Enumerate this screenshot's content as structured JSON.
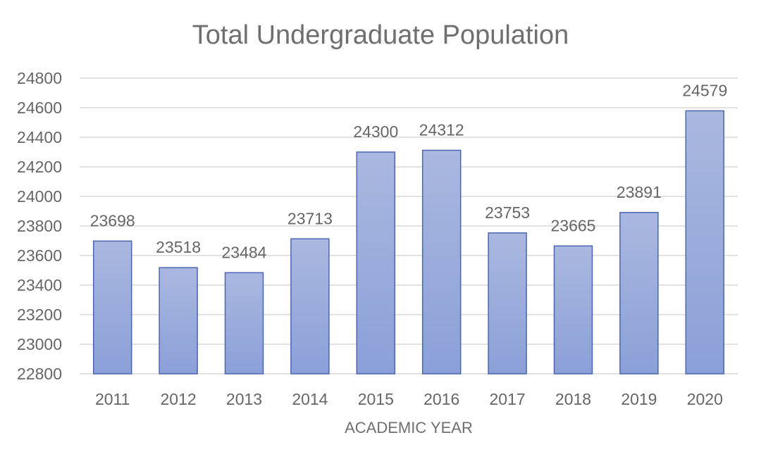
{
  "chart_data": {
    "type": "bar",
    "title": "Total Undergraduate Population",
    "xlabel": "ACADEMIC YEAR",
    "ylabel": "",
    "categories": [
      "2011",
      "2012",
      "2013",
      "2014",
      "2015",
      "2016",
      "2017",
      "2018",
      "2019",
      "2020"
    ],
    "values": [
      23698,
      23518,
      23484,
      23713,
      24300,
      24312,
      23753,
      23665,
      23891,
      24579
    ],
    "data_labels": [
      "23698",
      "23518",
      "23484",
      "23713",
      "24300",
      "24312",
      "23753",
      "23665",
      "23891",
      "24579"
    ],
    "ylim": [
      22800,
      24800
    ],
    "y_ticks": [
      "22800",
      "23000",
      "23200",
      "23400",
      "23600",
      "23800",
      "24000",
      "24200",
      "24400",
      "24600",
      "24800"
    ],
    "grid": true,
    "legend": "none",
    "colors": {
      "bar_top": "#aab8e0",
      "bar_bottom": "#8ba0d8",
      "bar_edge": "#4a66b0",
      "grid": "#d9d9d9",
      "text": "#666666"
    }
  }
}
